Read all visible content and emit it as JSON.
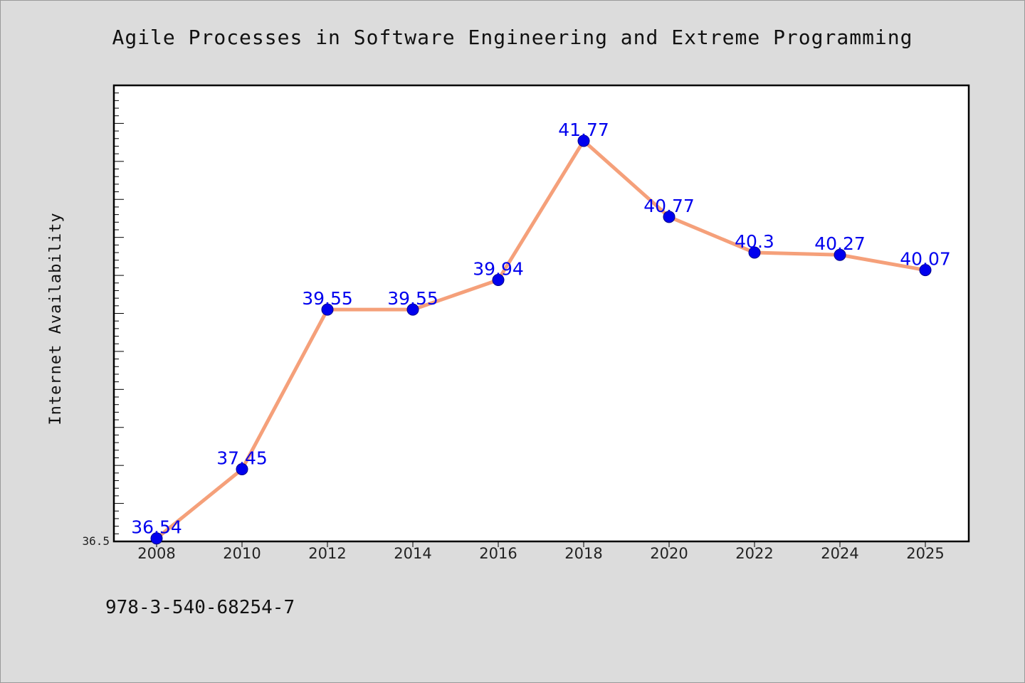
{
  "chart_data": {
    "type": "line",
    "title": "Agile Processes in Software Engineering and Extreme Programming",
    "xlabel": "",
    "ylabel": "Internet Availability",
    "categories": [
      "2008",
      "2010",
      "2012",
      "2014",
      "2016",
      "2018",
      "2020",
      "2022",
      "2024",
      "2025"
    ],
    "series": [
      {
        "values": [
          36.54,
          37.45,
          39.55,
          39.55,
          39.94,
          41.77,
          40.77,
          40.3,
          40.27,
          40.07
        ],
        "data_labels": [
          "36.54",
          "37.45",
          "39.55",
          "39.55",
          "39.94",
          "41.77",
          "40.77",
          "40.3",
          "40.27",
          "40.07"
        ]
      }
    ],
    "ylim": [
      36.5,
      42.5
    ],
    "yticks_labeled": [
      "36.5"
    ],
    "grid": false,
    "legend": "none",
    "colors": {
      "line": "#f5a07a",
      "marker": "#0000ee",
      "data_label": "#0000ee",
      "plot_background": "#ffffff",
      "figure_background": "#dcdcdc"
    }
  },
  "footer": {
    "isbn": "978-3-540-68254-7"
  }
}
